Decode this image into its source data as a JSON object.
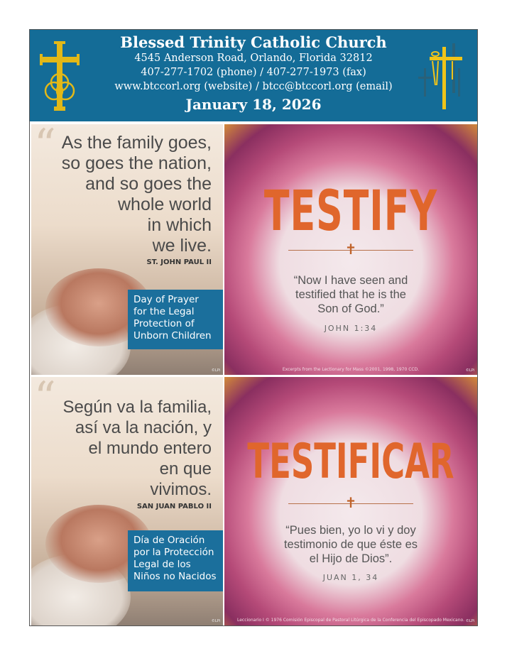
{
  "header": {
    "title": "Blessed Trinity Catholic Church",
    "address": "4545 Anderson Road, Orlando, Florida 32812",
    "phone": "407-277-1702 (phone) / 407-277-1973 (fax)",
    "web": "www.btccorl.org (website) / btcc@btccorl.org (email)",
    "date": "January 18, 2026",
    "background": "#146c97",
    "logo_color": "#e2b817"
  },
  "panels": {
    "english_family": {
      "quote": [
        "As the family goes,",
        "so goes the nation,",
        "and so goes the",
        "whole world",
        "in which",
        "we live."
      ],
      "attribution": "ST. JOHN PAUL II",
      "box": [
        "Day of Prayer",
        "for the Legal",
        "Protection of",
        "Unborn Children"
      ],
      "credit": "©LPi"
    },
    "english_testify": {
      "word": "TESTIFY",
      "verse": [
        "“Now I have seen and",
        "testified that he is the",
        "Son of God.”"
      ],
      "reference": "JOHN 1:34",
      "credit": "Excerpts from the Lectionary for Mass ©2001, 1998, 1970 CCD.",
      "lpi": "©LPi"
    },
    "spanish_family": {
      "quote": [
        "Según va la familia,",
        "así va la nación, y",
        "el mundo entero",
        "en que",
        "vivimos."
      ],
      "attribution": "SAN JUAN PABLO II",
      "box": [
        "Día de Oración",
        "por la Protección",
        "Legal de los",
        "Niños no Nacidos"
      ],
      "credit": "©LPi"
    },
    "spanish_testify": {
      "word": "TESTIFICAR",
      "verse": [
        "“Pues bien, yo lo vi y doy",
        "testimonio de que éste es",
        "el Hijo de Dios”."
      ],
      "reference": "JUAN 1, 34",
      "credit": "Leccionario I © 1976 Comisión Episcopal de Pastoral Litúrgica de la Conferencia del Episcopado Mexicano.",
      "lpi": "©LPi"
    }
  }
}
